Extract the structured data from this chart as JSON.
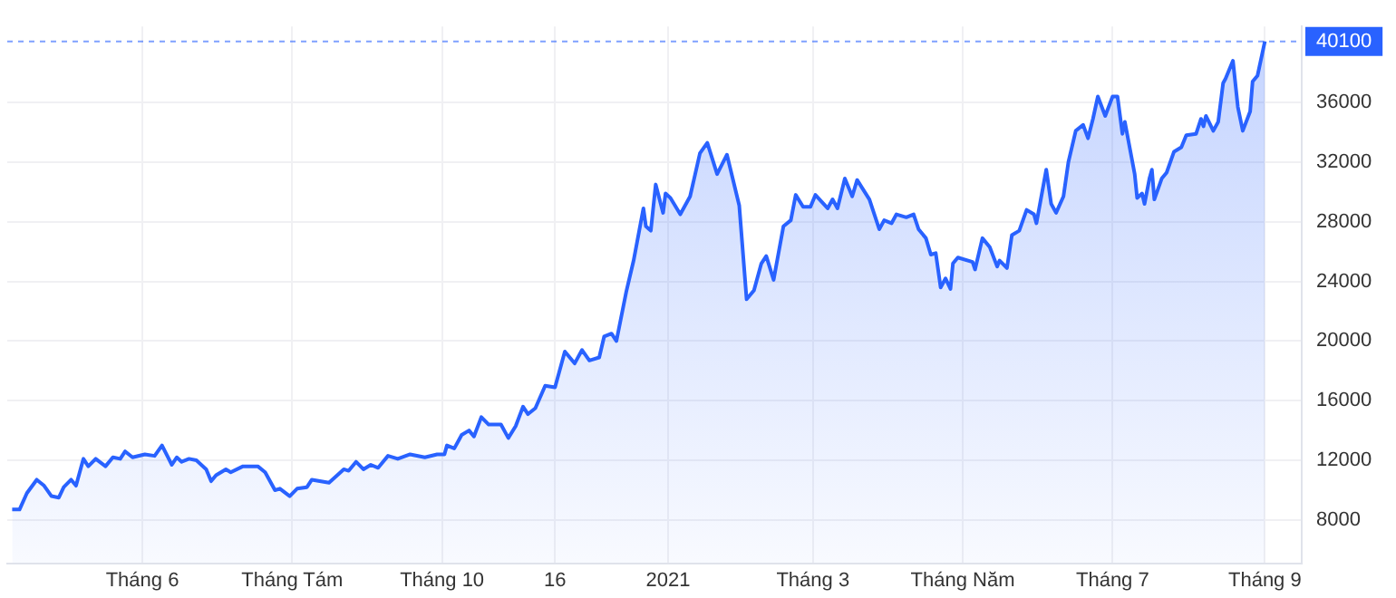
{
  "chart_data": {
    "type": "area",
    "grid": true,
    "legend": false,
    "xlim": [
      "2020-04-07",
      "2021-09-16"
    ],
    "xticks": [
      {
        "value": "2020-06-01",
        "label": "Tháng 6"
      },
      {
        "value": "2020-08-01",
        "label": "Tháng Tám"
      },
      {
        "value": "2020-10-01",
        "label": "Tháng 10"
      },
      {
        "value": "2020-11-16",
        "label": "16"
      },
      {
        "value": "2021-01-01",
        "label": "2021"
      },
      {
        "value": "2021-03-01",
        "label": "Tháng 3"
      },
      {
        "value": "2021-05-01",
        "label": "Tháng Năm"
      },
      {
        "value": "2021-07-01",
        "label": "Tháng 7"
      },
      {
        "value": "2021-09-01",
        "label": "Tháng 9"
      }
    ],
    "ylim": [
      5100,
      41100
    ],
    "yticks": [
      8000,
      12000,
      16000,
      20000,
      24000,
      28000,
      32000,
      36000
    ],
    "ref_lines": [
      {
        "axis": "y",
        "value": 40100,
        "label": "40100",
        "color": "#2962ff",
        "line_style": "dashed"
      }
    ],
    "series": [
      {
        "color": "#2962ff",
        "x": [
          "2020-04-09",
          "2020-04-12",
          "2020-04-15",
          "2020-04-19",
          "2020-04-22",
          "2020-04-25",
          "2020-04-28",
          "2020-04-30",
          "2020-05-03",
          "2020-05-05",
          "2020-05-08",
          "2020-05-10",
          "2020-05-13",
          "2020-05-17",
          "2020-05-20",
          "2020-05-23",
          "2020-05-25",
          "2020-05-28",
          "2020-06-02",
          "2020-06-06",
          "2020-06-09",
          "2020-06-13",
          "2020-06-15",
          "2020-06-17",
          "2020-06-20",
          "2020-06-23",
          "2020-06-27",
          "2020-06-29",
          "2020-07-01",
          "2020-07-05",
          "2020-07-07",
          "2020-07-12",
          "2020-07-18",
          "2020-07-21",
          "2020-07-25",
          "2020-07-27",
          "2020-07-31",
          "2020-08-03",
          "2020-08-07",
          "2020-08-09",
          "2020-08-16",
          "2020-08-22",
          "2020-08-24",
          "2020-08-27",
          "2020-08-30",
          "2020-09-02",
          "2020-09-05",
          "2020-09-09",
          "2020-09-13",
          "2020-09-18",
          "2020-09-24",
          "2020-09-29",
          "2020-10-02",
          "2020-10-03",
          "2020-10-06",
          "2020-10-09",
          "2020-10-12",
          "2020-10-14",
          "2020-10-17",
          "2020-10-20",
          "2020-10-25",
          "2020-10-28",
          "2020-10-31",
          "2020-11-03",
          "2020-11-05",
          "2020-11-08",
          "2020-11-12",
          "2020-11-16",
          "2020-11-20",
          "2020-11-24",
          "2020-11-27",
          "2020-11-30",
          "2020-12-04",
          "2020-12-06",
          "2020-12-09",
          "2020-12-11",
          "2020-12-15",
          "2020-12-18",
          "2020-12-22",
          "2020-12-23",
          "2020-12-25",
          "2020-12-27",
          "2020-12-30",
          "2020-12-31",
          "2021-01-02",
          "2021-01-06",
          "2021-01-10",
          "2021-01-14",
          "2021-01-17",
          "2021-01-21",
          "2021-01-25",
          "2021-01-30",
          "2021-02-02",
          "2021-02-05",
          "2021-02-08",
          "2021-02-10",
          "2021-02-13",
          "2021-02-17",
          "2021-02-20",
          "2021-02-22",
          "2021-02-25",
          "2021-02-28",
          "2021-03-02",
          "2021-03-07",
          "2021-03-09",
          "2021-03-11",
          "2021-03-14",
          "2021-03-17",
          "2021-03-19",
          "2021-03-24",
          "2021-03-28",
          "2021-03-30",
          "2021-04-02",
          "2021-04-04",
          "2021-04-08",
          "2021-04-11",
          "2021-04-13",
          "2021-04-16",
          "2021-04-18",
          "2021-04-20",
          "2021-04-22",
          "2021-04-24",
          "2021-04-26",
          "2021-04-27",
          "2021-04-29",
          "2021-05-05",
          "2021-05-06",
          "2021-05-09",
          "2021-05-12",
          "2021-05-15",
          "2021-05-16",
          "2021-05-19",
          "2021-05-21",
          "2021-05-24",
          "2021-05-27",
          "2021-05-30",
          "2021-05-31",
          "2021-06-04",
          "2021-06-06",
          "2021-06-08",
          "2021-06-11",
          "2021-06-13",
          "2021-06-16",
          "2021-06-19",
          "2021-06-21",
          "2021-06-23",
          "2021-06-25",
          "2021-06-28",
          "2021-07-01",
          "2021-07-03",
          "2021-07-05",
          "2021-07-06",
          "2021-07-10",
          "2021-07-11",
          "2021-07-13",
          "2021-07-14",
          "2021-07-16",
          "2021-07-17",
          "2021-07-18",
          "2021-07-21",
          "2021-07-23",
          "2021-07-26",
          "2021-07-29",
          "2021-07-31",
          "2021-08-04",
          "2021-08-06",
          "2021-08-07",
          "2021-08-08",
          "2021-08-11",
          "2021-08-13",
          "2021-08-15",
          "2021-08-16",
          "2021-08-19",
          "2021-08-21",
          "2021-08-23",
          "2021-08-26",
          "2021-08-27",
          "2021-08-29",
          "2021-09-01"
        ],
        "values": [
          8700,
          8700,
          9800,
          10700,
          10300,
          9600,
          9500,
          10200,
          10700,
          10300,
          12100,
          11600,
          12100,
          11600,
          12200,
          12100,
          12600,
          12200,
          12400,
          12300,
          13000,
          11700,
          12200,
          11900,
          12100,
          12000,
          11400,
          10600,
          11000,
          11400,
          11200,
          11600,
          11600,
          11200,
          10000,
          10100,
          9600,
          10100,
          10200,
          10700,
          10500,
          11400,
          11300,
          11900,
          11400,
          11700,
          11500,
          12300,
          12100,
          12400,
          12200,
          12400,
          12400,
          13000,
          12800,
          13700,
          14000,
          13600,
          14900,
          14400,
          14400,
          13500,
          14300,
          15600,
          15100,
          15500,
          17000,
          16900,
          19300,
          18500,
          19400,
          18700,
          18900,
          20300,
          20500,
          20000,
          23300,
          25400,
          28900,
          27700,
          27400,
          30500,
          28600,
          29900,
          29600,
          28500,
          29700,
          32600,
          33300,
          31200,
          32500,
          29100,
          22800,
          23400,
          25200,
          25700,
          24100,
          27700,
          28100,
          29800,
          29000,
          29000,
          29800,
          28900,
          29500,
          28900,
          30900,
          29700,
          30800,
          29500,
          27500,
          28100,
          27900,
          28500,
          28300,
          28500,
          27500,
          26900,
          25800,
          25900,
          23600,
          24200,
          23500,
          25200,
          25600,
          25300,
          24800,
          26900,
          26300,
          25000,
          25400,
          24900,
          27100,
          27400,
          28800,
          28500,
          27900,
          31500,
          29200,
          28600,
          29700,
          32000,
          34100,
          34500,
          33600,
          34900,
          36400,
          35100,
          36400,
          36400,
          33900,
          34700,
          31200,
          29600,
          29900,
          29200,
          30900,
          31500,
          29500,
          30900,
          31300,
          32700,
          33000,
          33800,
          33900,
          34900,
          34400,
          35100,
          34100,
          34700,
          37300,
          37600,
          38800,
          35700,
          34100,
          35400,
          37400,
          37800,
          40100
        ]
      }
    ]
  }
}
